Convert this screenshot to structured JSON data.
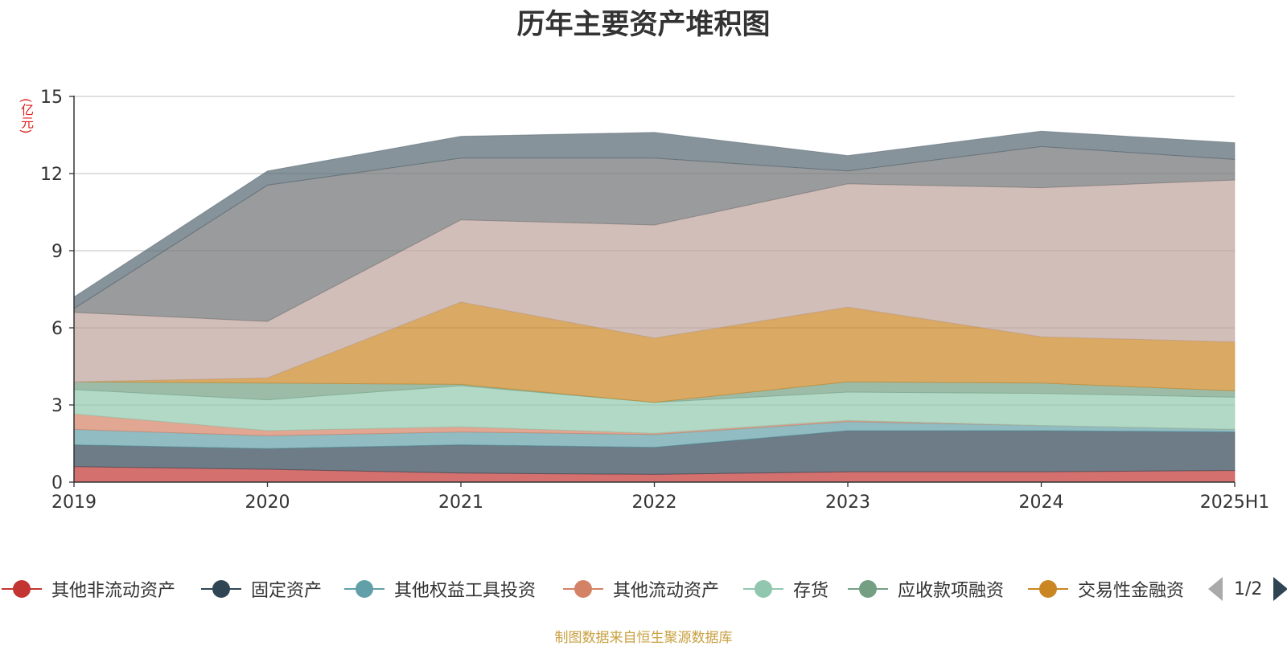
{
  "chart_data": {
    "type": "area",
    "stacked": true,
    "title": "历年主要资产堆积图",
    "unit": "(亿元)",
    "x": [
      "2019",
      "2020",
      "2021",
      "2022",
      "2023",
      "2024",
      "2025H1"
    ],
    "ylim": [
      0,
      15
    ],
    "yticks": [
      "0",
      "3",
      "6",
      "9",
      "12",
      "15"
    ],
    "grid": true,
    "legend_position": "bottom",
    "series": [
      {
        "name": "其他非流动资产",
        "color": "#c23531",
        "values": [
          0.6,
          0.5,
          0.35,
          0.3,
          0.4,
          0.4,
          0.45
        ]
      },
      {
        "name": "固定资产",
        "color": "#2f4554",
        "values": [
          0.85,
          0.8,
          1.1,
          1.05,
          1.6,
          1.6,
          1.5
        ]
      },
      {
        "name": "其他权益工具投资",
        "color": "#61a0a8",
        "values": [
          0.6,
          0.5,
          0.5,
          0.5,
          0.35,
          0.2,
          0.1
        ]
      },
      {
        "name": "其他流动资产",
        "color": "#d48265",
        "values": [
          0.6,
          0.2,
          0.2,
          0.05,
          0.05,
          0.0,
          0.0
        ]
      },
      {
        "name": "存货",
        "color": "#91c7ae",
        "values": [
          0.95,
          1.2,
          1.6,
          1.2,
          1.1,
          1.25,
          1.25
        ]
      },
      {
        "name": "应收款项融资",
        "color": "#749f83",
        "values": [
          0.3,
          0.65,
          0.05,
          0.0,
          0.4,
          0.4,
          0.25
        ]
      },
      {
        "name": "交易性金融资",
        "color": "#ca8622",
        "values": [
          0.0,
          0.2,
          3.2,
          2.5,
          2.9,
          1.8,
          1.9
        ]
      },
      {
        "name": "",
        "color": "#bda29a",
        "values": [
          2.7,
          2.2,
          3.2,
          4.4,
          4.8,
          5.8,
          6.3
        ]
      },
      {
        "name": "",
        "color": "#6e7074",
        "values": [
          0.15,
          5.3,
          2.4,
          2.6,
          0.5,
          1.6,
          0.8
        ]
      },
      {
        "name": "",
        "color": "#546570",
        "values": [
          0.45,
          0.55,
          0.85,
          1.0,
          0.6,
          0.6,
          0.65
        ]
      }
    ]
  },
  "legend": {
    "items": [
      {
        "label": "其他非流动资产",
        "color": "#c23531"
      },
      {
        "label": "固定资产",
        "color": "#2f4554"
      },
      {
        "label": "其他权益工具投资",
        "color": "#61a0a8"
      },
      {
        "label": "其他流动资产",
        "color": "#d48265"
      },
      {
        "label": "存货",
        "color": "#91c7ae"
      },
      {
        "label": "应收款项融资",
        "color": "#749f83"
      },
      {
        "label": "交易性金融资",
        "color": "#ca8622"
      }
    ],
    "page": "1/2"
  },
  "source": "制图数据来自恒生聚源数据库"
}
